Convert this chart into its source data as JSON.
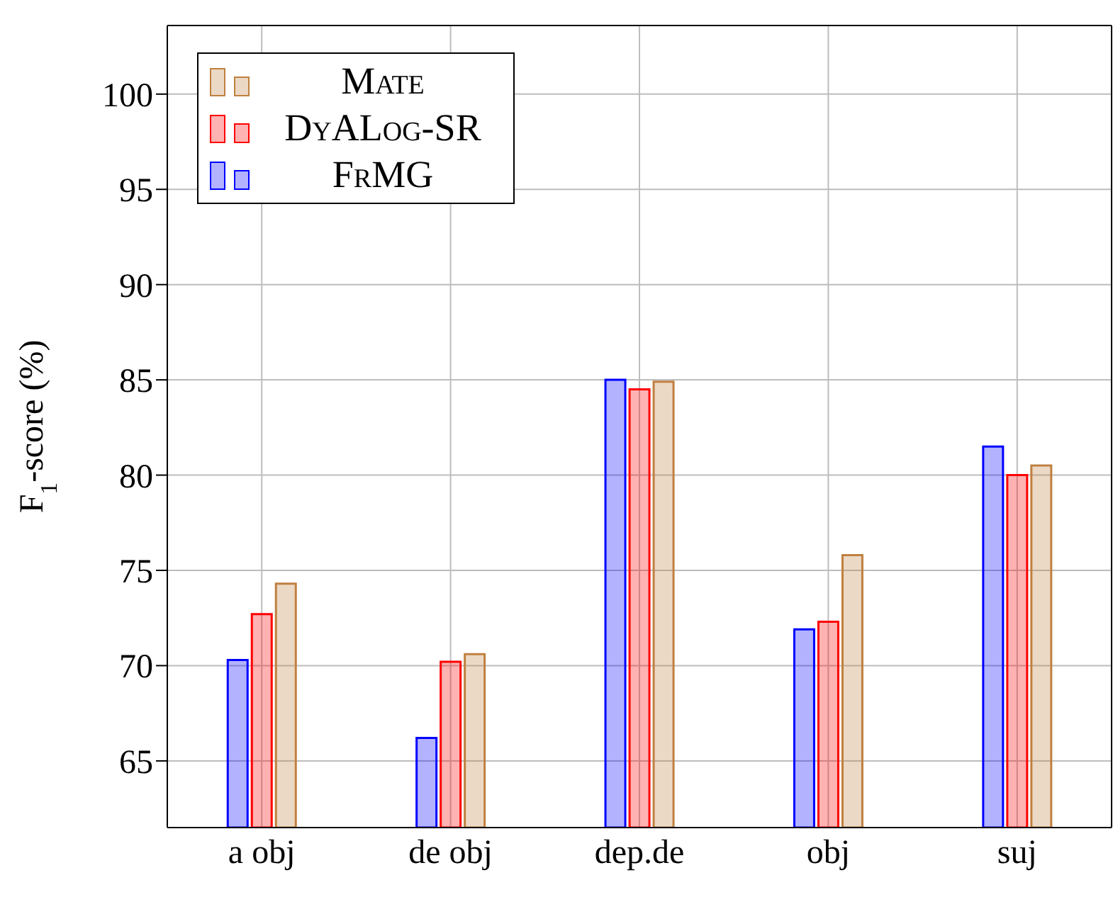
{
  "chart_data": {
    "type": "bar",
    "ylabel": "F$_{1}$-score (%)",
    "categories": [
      "a obj",
      "de obj",
      "dep.de",
      "obj",
      "suj"
    ],
    "series": [
      {
        "name": "FrMG",
        "color": "#0000ff",
        "values": [
          70.3,
          66.2,
          85.0,
          71.9,
          81.5
        ]
      },
      {
        "name": "DyALog-SR",
        "color": "#ff0000",
        "values": [
          72.7,
          70.2,
          84.5,
          72.3,
          80.0
        ]
      },
      {
        "name": "Mate",
        "color": "#bf8040",
        "values": [
          74.3,
          70.6,
          84.9,
          75.8,
          80.5
        ]
      }
    ],
    "ylim": [
      61.5,
      103.6
    ],
    "yticks": [
      65,
      70,
      75,
      80,
      85,
      90,
      95,
      100
    ],
    "grid": true,
    "legend": "top left"
  }
}
